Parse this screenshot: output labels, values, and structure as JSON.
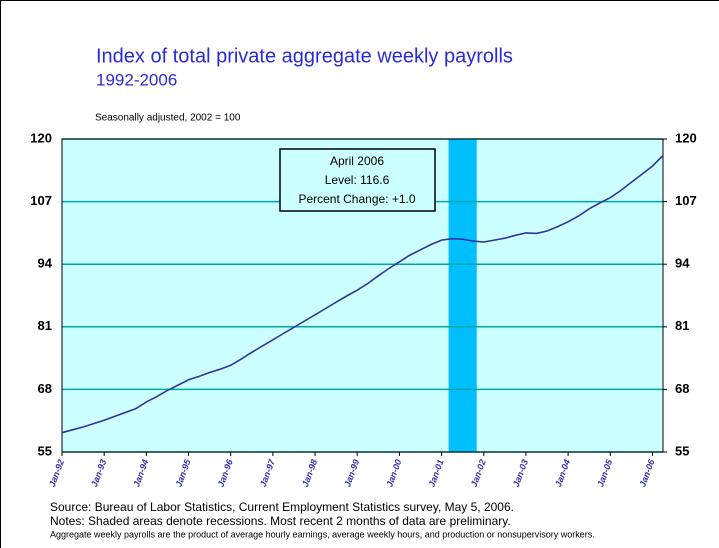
{
  "chart_data": {
    "type": "line",
    "title": "Index of total private aggregate weekly payrolls",
    "subtitle": "1992-2006",
    "note": "Seasonally adjusted,  2002 = 100",
    "x": [
      "Jan-92",
      "Apr-92",
      "Jul-92",
      "Oct-92",
      "Jan-93",
      "Apr-93",
      "Jul-93",
      "Oct-93",
      "Jan-94",
      "Apr-94",
      "Jul-94",
      "Oct-94",
      "Jan-95",
      "Apr-95",
      "Jul-95",
      "Oct-95",
      "Jan-96",
      "Apr-96",
      "Jul-96",
      "Oct-96",
      "Jan-97",
      "Apr-97",
      "Jul-97",
      "Oct-97",
      "Jan-98",
      "Apr-98",
      "Jul-98",
      "Oct-98",
      "Jan-99",
      "Apr-99",
      "Jul-99",
      "Oct-99",
      "Jan-00",
      "Apr-00",
      "Jul-00",
      "Oct-00",
      "Jan-01",
      "Apr-01",
      "Jul-01",
      "Oct-01",
      "Jan-02",
      "Apr-02",
      "Jul-02",
      "Oct-02",
      "Jan-03",
      "Apr-03",
      "Jul-03",
      "Oct-03",
      "Jan-04",
      "Apr-04",
      "Jul-04",
      "Oct-04",
      "Jan-05",
      "Apr-05",
      "Jul-05",
      "Oct-05",
      "Jan-06",
      "Apr-06"
    ],
    "series": [
      {
        "name": "Index",
        "color": "#333399",
        "values": [
          59.0,
          59.6,
          60.2,
          60.9,
          61.6,
          62.4,
          63.2,
          64.0,
          65.4,
          66.5,
          67.8,
          68.9,
          70.0,
          70.7,
          71.5,
          72.2,
          73.0,
          74.3,
          75.7,
          77.0,
          78.3,
          79.6,
          80.9,
          82.2,
          83.5,
          84.8,
          86.1,
          87.4,
          88.6,
          90.0,
          91.6,
          93.1,
          94.5,
          95.9,
          97.0,
          98.1,
          99.0,
          99.3,
          99.2,
          98.8,
          98.6,
          99.0,
          99.4,
          100.0,
          100.5,
          100.4,
          100.9,
          101.8,
          102.8,
          104.0,
          105.5,
          106.7,
          107.8,
          109.3,
          111.0,
          112.7,
          114.4,
          116.6
        ]
      }
    ],
    "xlim": [
      "Jan-92",
      "Apr-06"
    ],
    "xticks": [
      "Jan-92",
      "Jan-93",
      "Jan-94",
      "Jan-95",
      "Jan-96",
      "Jan-97",
      "Jan-98",
      "Jan-99",
      "Jan-00",
      "Jan-01",
      "Jan-02",
      "Jan-03",
      "Jan-04",
      "Jan-05",
      "Jan-06"
    ],
    "ylim": [
      55,
      120
    ],
    "yticks": [
      55,
      68,
      81,
      94,
      107,
      120
    ],
    "y2lim": [
      55,
      120
    ],
    "y2ticks": [
      55,
      68,
      81,
      94,
      107,
      120
    ],
    "grid": true,
    "recessions": [
      {
        "start": "Mar-01",
        "end": "Nov-01",
        "color": "#00bfff"
      }
    ],
    "annotation": [
      "April 2006",
      "Level: 116.6",
      "Percent Change: +1.0"
    ],
    "footnotes": [
      "Source:  Bureau of Labor Statistics, Current Employment Statistics survey, May 5, 2006.",
      "Notes:  Shaded areas denote recessions.  Most recent 2 months of data are preliminary.",
      "Aggregate weekly payrolls are the product of average hourly earnings, average weekly hours, and production or nonsupervisory workers."
    ]
  }
}
